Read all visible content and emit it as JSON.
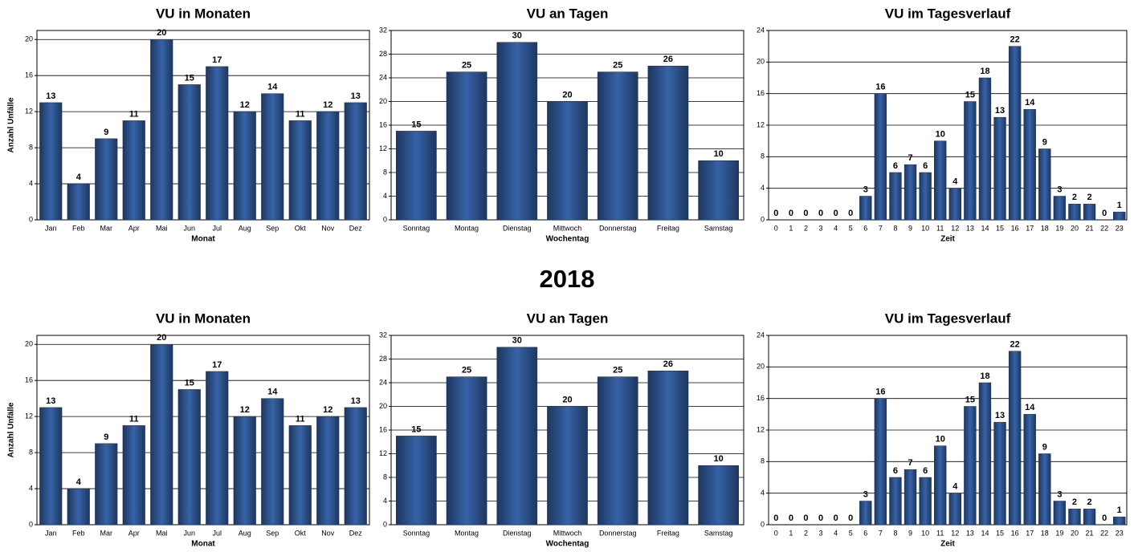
{
  "heading": "2018",
  "chart_data": [
    {
      "type": "bar",
      "title": "VU in Monaten",
      "xlabel": "Monat",
      "ylabel": "Anzahl Unfälle",
      "categories": [
        "Jan",
        "Feb",
        "Mar",
        "Apr",
        "Mai",
        "Jun",
        "Jul",
        "Aug",
        "Sep",
        "Okt",
        "Nov",
        "Dez"
      ],
      "values": [
        13,
        4,
        9,
        11,
        20,
        15,
        17,
        12,
        14,
        11,
        12,
        13
      ],
      "color": "#2b4f86",
      "ylim": [
        0,
        21
      ],
      "yticks": [
        0,
        4,
        8,
        12,
        16,
        20
      ],
      "grid": true
    },
    {
      "type": "bar",
      "title": "VU an Tagen",
      "xlabel": "Wochentag",
      "categories": [
        "Sonntag",
        "Montag",
        "Dienstag",
        "Mittwoch",
        "Donnerstag",
        "Freitag",
        "Samstag"
      ],
      "values": [
        15,
        25,
        30,
        20,
        25,
        26,
        10
      ],
      "color": "#2b4f86",
      "ylim": [
        0,
        32
      ],
      "yticks": [
        0,
        4,
        8,
        12,
        16,
        20,
        24,
        28,
        32
      ],
      "grid": true
    },
    {
      "type": "bar",
      "title": "VU im Tagesverlauf",
      "xlabel": "Zeit",
      "categories": [
        "0",
        "1",
        "2",
        "3",
        "4",
        "5",
        "6",
        "7",
        "8",
        "9",
        "10",
        "11",
        "12",
        "13",
        "14",
        "15",
        "16",
        "17",
        "18",
        "19",
        "20",
        "21",
        "22",
        "23"
      ],
      "values": [
        0,
        0,
        0,
        0,
        0,
        0,
        3,
        16,
        6,
        7,
        6,
        10,
        4,
        15,
        18,
        13,
        22,
        14,
        9,
        3,
        2,
        2,
        0,
        1
      ],
      "color": "#2b4f86",
      "ylim": [
        0,
        24
      ],
      "yticks": [
        0,
        4,
        8,
        12,
        16,
        20,
        24
      ],
      "grid": true
    },
    {
      "type": "bar",
      "title": "VU in Monaten",
      "xlabel": "Monat",
      "ylabel": "Anzahl Unfälle",
      "categories": [
        "Jan",
        "Feb",
        "Mar",
        "Apr",
        "Mai",
        "Jun",
        "Jul",
        "Aug",
        "Sep",
        "Okt",
        "Nov",
        "Dez"
      ],
      "values": [
        13,
        4,
        9,
        11,
        20,
        15,
        17,
        12,
        14,
        11,
        12,
        13
      ],
      "color": "#2b4f86",
      "ylim": [
        0,
        21
      ],
      "yticks": [
        0,
        4,
        8,
        12,
        16,
        20
      ],
      "grid": true
    },
    {
      "type": "bar",
      "title": "VU an Tagen",
      "xlabel": "Wochentag",
      "categories": [
        "Sonntag",
        "Montag",
        "Dienstag",
        "Mittwoch",
        "Donnerstag",
        "Freitag",
        "Samstag"
      ],
      "values": [
        15,
        25,
        30,
        20,
        25,
        26,
        10
      ],
      "color": "#2b4f86",
      "ylim": [
        0,
        32
      ],
      "yticks": [
        0,
        4,
        8,
        12,
        16,
        20,
        24,
        28,
        32
      ],
      "grid": true
    },
    {
      "type": "bar",
      "title": "VU im Tagesverlauf",
      "xlabel": "Zeit",
      "categories": [
        "0",
        "1",
        "2",
        "3",
        "4",
        "5",
        "6",
        "7",
        "8",
        "9",
        "10",
        "11",
        "12",
        "13",
        "14",
        "15",
        "16",
        "17",
        "18",
        "19",
        "20",
        "21",
        "22",
        "23"
      ],
      "values": [
        0,
        0,
        0,
        0,
        0,
        0,
        3,
        16,
        6,
        7,
        6,
        10,
        4,
        15,
        18,
        13,
        22,
        14,
        9,
        3,
        2,
        2,
        0,
        1
      ],
      "color": "#2b4f86",
      "ylim": [
        0,
        24
      ],
      "yticks": [
        0,
        4,
        8,
        12,
        16,
        20,
        24
      ],
      "grid": true
    }
  ]
}
